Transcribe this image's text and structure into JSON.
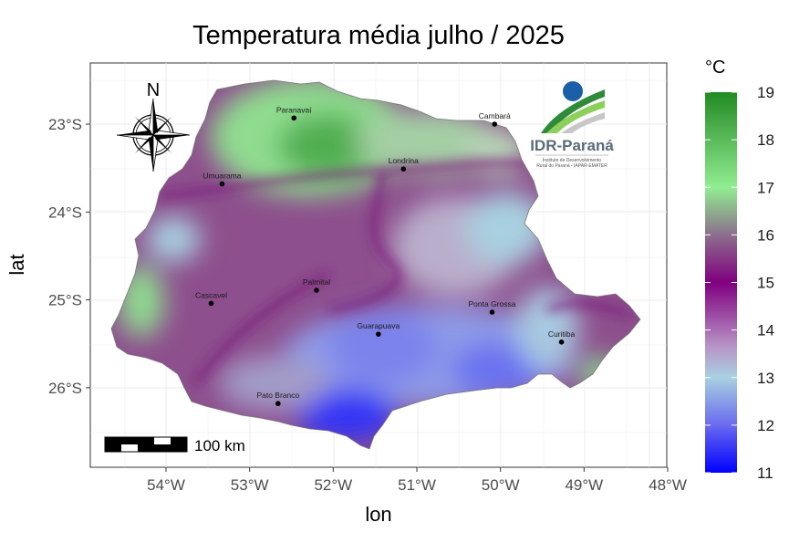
{
  "title": "Temperatura média julho / 2025",
  "x_axis": {
    "label": "lon",
    "ticks": [
      "54°W",
      "53°W",
      "52°W",
      "51°W",
      "50°W",
      "49°W",
      "48°W"
    ]
  },
  "y_axis": {
    "label": "lat",
    "ticks": [
      "23°S",
      "24°S",
      "25°S",
      "26°S"
    ]
  },
  "legend": {
    "unit": "°C",
    "ticks": [
      "19",
      "18",
      "17",
      "16",
      "15",
      "14",
      "13",
      "12",
      "11"
    ],
    "range": [
      11,
      19
    ],
    "colors": [
      "#0000ff",
      "#a8d0e0",
      "#800080",
      "#90ee90",
      "#228b22"
    ]
  },
  "cities": [
    {
      "name": "Paranavaí",
      "lon": -52.47,
      "lat": -22.93
    },
    {
      "name": "Cambará",
      "lon": -50.07,
      "lat": -23.0
    },
    {
      "name": "Londrina",
      "lon": -51.16,
      "lat": -23.51
    },
    {
      "name": "Umuarama",
      "lon": -53.33,
      "lat": -23.68
    },
    {
      "name": "Palmital",
      "lon": -52.2,
      "lat": -24.89
    },
    {
      "name": "Cascavel",
      "lon": -53.46,
      "lat": -25.04
    },
    {
      "name": "Ponta Grossa",
      "lon": -50.1,
      "lat": -25.14
    },
    {
      "name": "Guarapuava",
      "lon": -51.46,
      "lat": -25.39
    },
    {
      "name": "Curitiba",
      "lon": -49.27,
      "lat": -25.48
    },
    {
      "name": "Pato Branco",
      "lon": -52.66,
      "lat": -26.18
    }
  ],
  "scale_bar": {
    "label": "100 km"
  },
  "compass": {
    "label": "N"
  },
  "logo": {
    "name": "IDR-Paraná",
    "subtitle_1": "Instituto de Desenvolvimento",
    "subtitle_2": "Rural do Paraná - IAPAR-EMATER"
  }
}
